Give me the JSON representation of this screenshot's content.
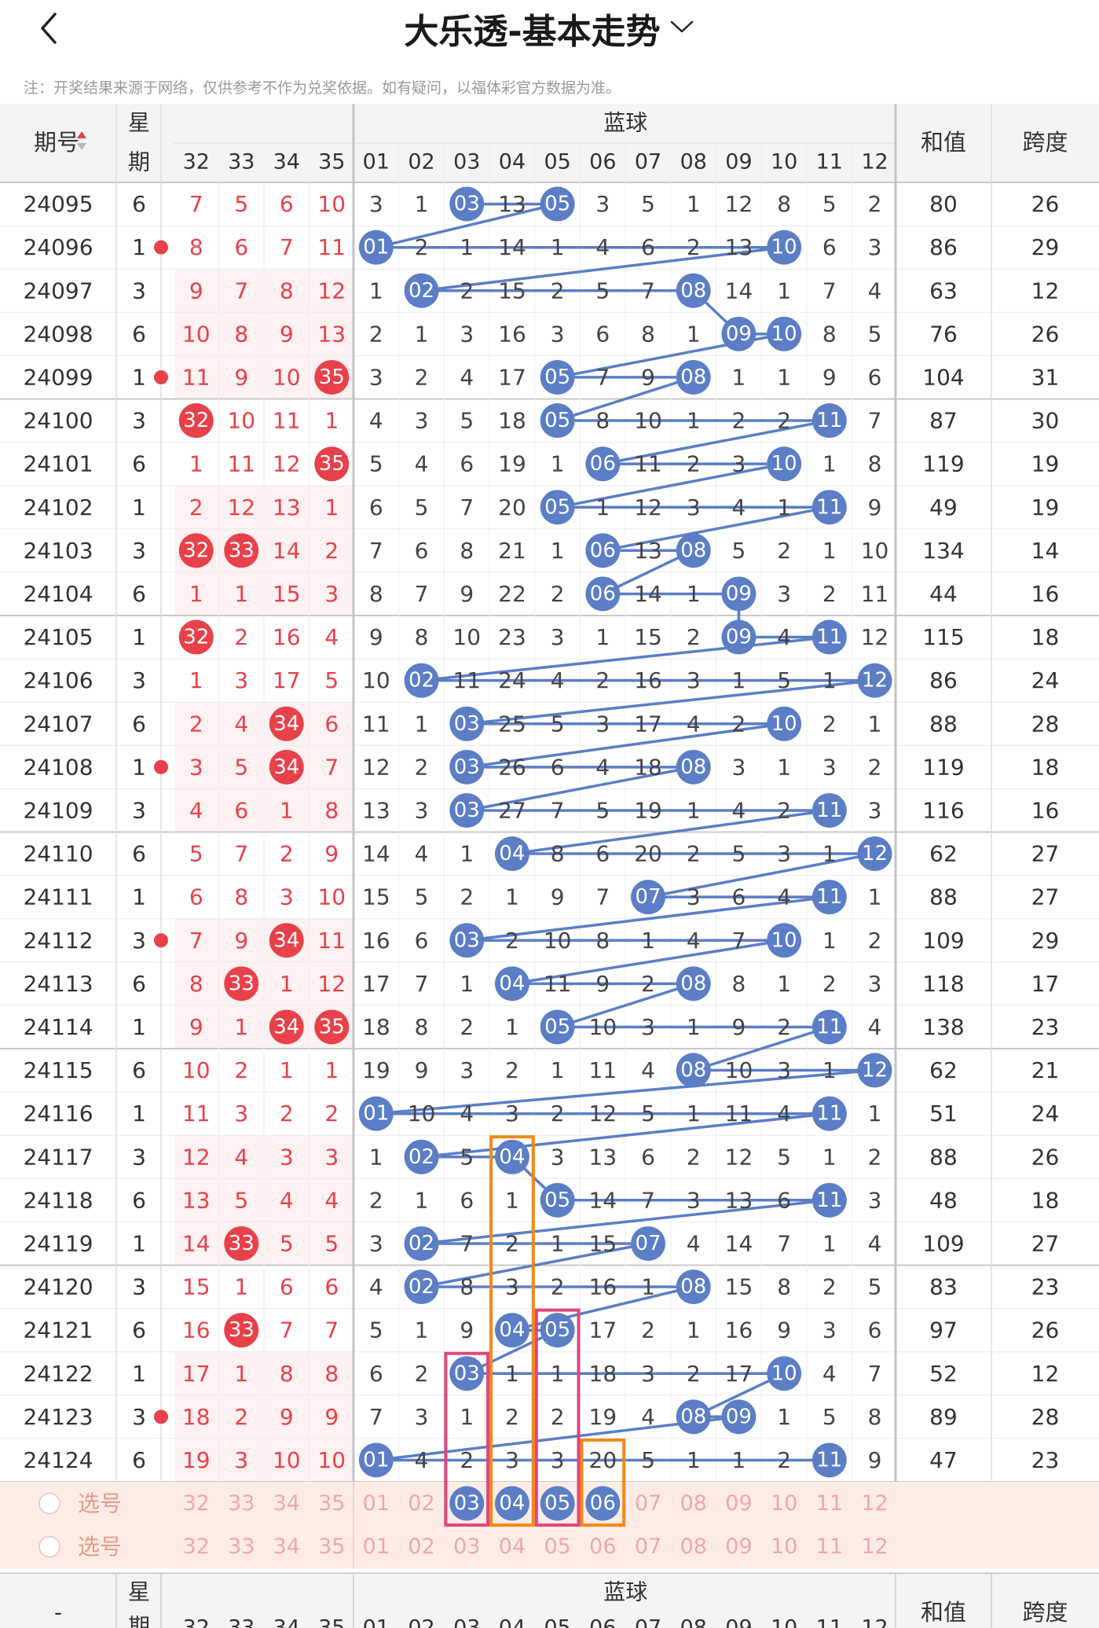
{
  "header": {
    "title": "大乐透-基本走势",
    "note": "注：开奖结果来源于网络，仅供参考不作为兑奖依据。如有疑问，以福体彩官方数据为准。",
    "col_issue": "期号",
    "col_week_top": "星",
    "col_week_bottom": "期",
    "col_blue": "蓝球",
    "col_sum": "和值",
    "col_span": "跨度",
    "front_cols": [
      "32",
      "33",
      "34",
      "35"
    ],
    "blue_cols": [
      "01",
      "02",
      "03",
      "04",
      "05",
      "06",
      "07",
      "08",
      "09",
      "10",
      "11",
      "12"
    ]
  },
  "colors": {
    "red": "#e8414a",
    "blue": "#5b7ec6",
    "orange": "#f08a16",
    "pink": "#e0467c",
    "pick_bg": "#fdece6"
  },
  "rows": [
    {
      "issue": "24095",
      "week": "6",
      "front": [
        7,
        5,
        6,
        10
      ],
      "front_hit": [],
      "blue": [
        3,
        1,
        "03",
        13,
        "05",
        3,
        5,
        1,
        12,
        8,
        5,
        2
      ],
      "sum": "80",
      "span": "26",
      "left_dot": false
    },
    {
      "issue": "24096",
      "week": "1",
      "front": [
        8,
        6,
        7,
        11
      ],
      "front_hit": [],
      "blue": [
        "01",
        2,
        1,
        14,
        1,
        4,
        6,
        2,
        13,
        "10",
        6,
        3
      ],
      "sum": "86",
      "span": "29",
      "left_dot": true
    },
    {
      "issue": "24097",
      "week": "3",
      "front": [
        9,
        7,
        8,
        12
      ],
      "front_hit": [],
      "blue": [
        1,
        "02",
        2,
        15,
        2,
        5,
        7,
        "08",
        14,
        1,
        7,
        4
      ],
      "sum": "63",
      "span": "12",
      "left_dot": false
    },
    {
      "issue": "24098",
      "week": "6",
      "front": [
        10,
        8,
        9,
        13
      ],
      "front_hit": [],
      "blue": [
        2,
        1,
        3,
        16,
        3,
        6,
        8,
        1,
        "09",
        "10",
        8,
        5
      ],
      "sum": "76",
      "span": "26",
      "left_dot": false
    },
    {
      "issue": "24099",
      "week": "1",
      "front": [
        11,
        9,
        10,
        "35"
      ],
      "front_hit": [
        3
      ],
      "blue": [
        3,
        2,
        4,
        17,
        "05",
        7,
        9,
        "08",
        1,
        1,
        9,
        6
      ],
      "sum": "104",
      "span": "31",
      "left_dot": true
    },
    {
      "issue": "24100",
      "week": "3",
      "front": [
        "32",
        10,
        11,
        1
      ],
      "front_hit": [
        0
      ],
      "blue": [
        4,
        3,
        5,
        18,
        "05",
        8,
        10,
        1,
        2,
        2,
        "11",
        7
      ],
      "sum": "87",
      "span": "30",
      "left_dot": false
    },
    {
      "issue": "24101",
      "week": "6",
      "front": [
        1,
        11,
        12,
        "35"
      ],
      "front_hit": [
        3
      ],
      "blue": [
        5,
        4,
        6,
        19,
        1,
        "06",
        11,
        2,
        3,
        "10",
        1,
        8
      ],
      "sum": "119",
      "span": "19",
      "left_dot": false
    },
    {
      "issue": "24102",
      "week": "1",
      "front": [
        2,
        12,
        13,
        1
      ],
      "front_hit": [],
      "blue": [
        6,
        5,
        7,
        20,
        "05",
        1,
        12,
        3,
        4,
        1,
        "11",
        9
      ],
      "sum": "49",
      "span": "19",
      "left_dot": false
    },
    {
      "issue": "24103",
      "week": "3",
      "front": [
        "32",
        "33",
        14,
        2
      ],
      "front_hit": [
        0,
        1
      ],
      "blue": [
        7,
        6,
        8,
        21,
        1,
        "06",
        13,
        "08",
        5,
        2,
        1,
        10
      ],
      "sum": "134",
      "span": "14",
      "left_dot": false
    },
    {
      "issue": "24104",
      "week": "6",
      "front": [
        1,
        1,
        15,
        3
      ],
      "front_hit": [],
      "blue": [
        8,
        7,
        9,
        22,
        2,
        "06",
        14,
        1,
        "09",
        3,
        2,
        11
      ],
      "sum": "44",
      "span": "16",
      "left_dot": false
    },
    {
      "issue": "24105",
      "week": "1",
      "front": [
        "32",
        2,
        16,
        4
      ],
      "front_hit": [
        0
      ],
      "blue": [
        9,
        8,
        10,
        23,
        3,
        1,
        15,
        2,
        "09",
        4,
        "11",
        12
      ],
      "sum": "115",
      "span": "18",
      "left_dot": false
    },
    {
      "issue": "24106",
      "week": "3",
      "front": [
        1,
        3,
        17,
        5
      ],
      "front_hit": [],
      "blue": [
        10,
        "02",
        11,
        24,
        4,
        2,
        16,
        3,
        1,
        5,
        1,
        "12"
      ],
      "sum": "86",
      "span": "24",
      "left_dot": false
    },
    {
      "issue": "24107",
      "week": "6",
      "front": [
        2,
        4,
        "34",
        6
      ],
      "front_hit": [
        2
      ],
      "blue": [
        11,
        1,
        "03",
        25,
        5,
        3,
        17,
        4,
        2,
        "10",
        2,
        1
      ],
      "sum": "88",
      "span": "28",
      "left_dot": false
    },
    {
      "issue": "24108",
      "week": "1",
      "front": [
        3,
        5,
        "34",
        7
      ],
      "front_hit": [
        2
      ],
      "blue": [
        12,
        2,
        "03",
        26,
        6,
        4,
        18,
        "08",
        3,
        1,
        3,
        2
      ],
      "sum": "119",
      "span": "18",
      "left_dot": true
    },
    {
      "issue": "24109",
      "week": "3",
      "front": [
        4,
        6,
        1,
        8
      ],
      "front_hit": [],
      "blue": [
        13,
        3,
        "03",
        27,
        7,
        5,
        19,
        1,
        4,
        2,
        "11",
        3
      ],
      "sum": "116",
      "span": "16",
      "left_dot": false
    },
    {
      "issue": "24110",
      "week": "6",
      "front": [
        5,
        7,
        2,
        9
      ],
      "front_hit": [],
      "blue": [
        14,
        4,
        1,
        "04",
        8,
        6,
        20,
        2,
        5,
        3,
        1,
        "12"
      ],
      "sum": "62",
      "span": "27",
      "left_dot": false
    },
    {
      "issue": "24111",
      "week": "1",
      "front": [
        6,
        8,
        3,
        10
      ],
      "front_hit": [],
      "blue": [
        15,
        5,
        2,
        1,
        9,
        7,
        "07",
        3,
        6,
        4,
        "11",
        1
      ],
      "sum": "88",
      "span": "27",
      "left_dot": false
    },
    {
      "issue": "24112",
      "week": "3",
      "front": [
        7,
        9,
        "34",
        11
      ],
      "front_hit": [
        2
      ],
      "blue": [
        16,
        6,
        "03",
        2,
        10,
        8,
        1,
        4,
        7,
        "10",
        1,
        2
      ],
      "sum": "109",
      "span": "29",
      "left_dot": true
    },
    {
      "issue": "24113",
      "week": "6",
      "front": [
        8,
        "33",
        1,
        12
      ],
      "front_hit": [
        1
      ],
      "blue": [
        17,
        7,
        1,
        "04",
        11,
        9,
        2,
        "08",
        8,
        1,
        2,
        3
      ],
      "sum": "118",
      "span": "17",
      "left_dot": false
    },
    {
      "issue": "24114",
      "week": "1",
      "front": [
        9,
        1,
        "34",
        "35"
      ],
      "front_hit": [
        2,
        3
      ],
      "blue": [
        18,
        8,
        2,
        1,
        "05",
        10,
        3,
        1,
        9,
        2,
        "11",
        4
      ],
      "sum": "138",
      "span": "23",
      "left_dot": false
    },
    {
      "issue": "24115",
      "week": "6",
      "front": [
        10,
        2,
        1,
        1
      ],
      "front_hit": [],
      "blue": [
        19,
        9,
        3,
        2,
        1,
        11,
        4,
        "08",
        10,
        3,
        1,
        "12"
      ],
      "sum": "62",
      "span": "21",
      "left_dot": false
    },
    {
      "issue": "24116",
      "week": "1",
      "front": [
        11,
        3,
        2,
        2
      ],
      "front_hit": [],
      "blue": [
        "01",
        10,
        4,
        3,
        2,
        12,
        5,
        1,
        11,
        4,
        "11",
        1
      ],
      "sum": "51",
      "span": "24",
      "left_dot": false
    },
    {
      "issue": "24117",
      "week": "3",
      "front": [
        12,
        4,
        3,
        3
      ],
      "front_hit": [],
      "blue": [
        1,
        "02",
        5,
        "04",
        3,
        13,
        6,
        2,
        12,
        5,
        1,
        2
      ],
      "sum": "88",
      "span": "26",
      "left_dot": false
    },
    {
      "issue": "24118",
      "week": "6",
      "front": [
        13,
        5,
        4,
        4
      ],
      "front_hit": [],
      "blue": [
        2,
        1,
        6,
        1,
        "05",
        14,
        7,
        3,
        13,
        6,
        "11",
        3
      ],
      "sum": "48",
      "span": "18",
      "left_dot": false
    },
    {
      "issue": "24119",
      "week": "1",
      "front": [
        14,
        "33",
        5,
        5
      ],
      "front_hit": [
        1
      ],
      "blue": [
        3,
        "02",
        7,
        2,
        1,
        15,
        "07",
        4,
        14,
        7,
        1,
        4
      ],
      "sum": "109",
      "span": "27",
      "left_dot": false
    },
    {
      "issue": "24120",
      "week": "3",
      "front": [
        15,
        1,
        6,
        6
      ],
      "front_hit": [],
      "blue": [
        4,
        "02",
        8,
        3,
        2,
        16,
        1,
        "08",
        15,
        8,
        2,
        5
      ],
      "sum": "83",
      "span": "23",
      "left_dot": false
    },
    {
      "issue": "24121",
      "week": "6",
      "front": [
        16,
        "33",
        7,
        7
      ],
      "front_hit": [
        1
      ],
      "blue": [
        5,
        1,
        9,
        "04",
        "05",
        17,
        2,
        1,
        16,
        9,
        3,
        6
      ],
      "sum": "97",
      "span": "26",
      "left_dot": false
    },
    {
      "issue": "24122",
      "week": "1",
      "front": [
        17,
        1,
        8,
        8
      ],
      "front_hit": [],
      "blue": [
        6,
        2,
        "03",
        1,
        1,
        18,
        3,
        2,
        17,
        "10",
        4,
        7
      ],
      "sum": "52",
      "span": "12",
      "left_dot": false
    },
    {
      "issue": "24123",
      "week": "3",
      "front": [
        18,
        2,
        9,
        9
      ],
      "front_hit": [],
      "blue": [
        7,
        3,
        1,
        2,
        2,
        19,
        4,
        "08",
        "09",
        1,
        5,
        8
      ],
      "sum": "89",
      "span": "28",
      "left_dot": true
    },
    {
      "issue": "24124",
      "week": "6",
      "front": [
        19,
        3,
        10,
        10
      ],
      "front_hit": [],
      "blue": [
        "01",
        4,
        2,
        3,
        3,
        20,
        5,
        1,
        1,
        2,
        "11",
        9
      ],
      "sum": "47",
      "span": "23",
      "left_dot": false
    }
  ],
  "pick": {
    "label": "选号",
    "front": [
      "32",
      "33",
      "34",
      "35"
    ],
    "blue": [
      "01",
      "02",
      "03",
      "04",
      "05",
      "06",
      "07",
      "08",
      "09",
      "10",
      "11",
      "12"
    ],
    "selected": [
      "03",
      "04",
      "05",
      "06"
    ]
  },
  "footer": {
    "issue": "-",
    "week_top": "星",
    "week_bottom": "期",
    "blue": "蓝球",
    "sum": "和值",
    "span": "跨度"
  }
}
